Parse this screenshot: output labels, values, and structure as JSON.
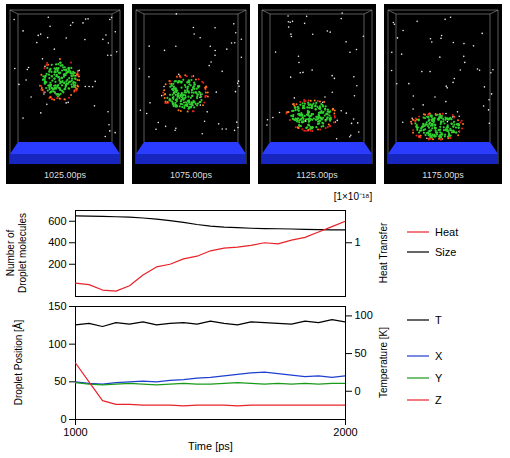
{
  "snapshots": [
    "1025.00ps",
    "1075.00ps",
    "1125.00ps",
    "1175.00ps"
  ],
  "chart_data": [
    {
      "type": "line",
      "y_label": "Number of Droplet molecules",
      "y2_label": "Heat Transfer",
      "annotations": [
        "[1×10⁻¹⁸]"
      ],
      "x": [
        1000,
        1050,
        1100,
        1150,
        1200,
        1250,
        1300,
        1350,
        1400,
        1450,
        1500,
        1550,
        1600,
        1650,
        1700,
        1750,
        1800,
        1850,
        1900,
        1950,
        2000
      ],
      "xlim": [
        1000,
        2000
      ],
      "ylim": [
        -100,
        700
      ],
      "yticks": [
        200,
        400,
        600
      ],
      "y2lim": [
        0,
        1.6
      ],
      "y2ticks": [
        1
      ],
      "legend": "right",
      "series": [
        {
          "name": "Heat",
          "color": "#e8232a",
          "axis": "y2",
          "values": [
            0.25,
            0.22,
            0.12,
            0.1,
            0.2,
            0.4,
            0.55,
            0.6,
            0.7,
            0.75,
            0.85,
            0.9,
            0.92,
            0.95,
            1.0,
            0.98,
            1.05,
            1.1,
            1.2,
            1.3,
            1.4
          ]
        },
        {
          "name": "Size",
          "color": "#000000",
          "values": [
            650,
            648,
            645,
            642,
            638,
            630,
            620,
            605,
            590,
            570,
            555,
            545,
            540,
            535,
            532,
            530,
            528,
            525,
            522,
            520,
            520
          ]
        }
      ]
    },
    {
      "type": "line",
      "x_label": "Time [ps]",
      "y_label": "Droplet Position [Å]",
      "y2_label": "Temperature [K]",
      "x": [
        1000,
        1050,
        1100,
        1150,
        1200,
        1250,
        1300,
        1350,
        1400,
        1450,
        1500,
        1550,
        1600,
        1650,
        1700,
        1750,
        1800,
        1850,
        1900,
        1950,
        2000
      ],
      "xlim": [
        1000,
        2000
      ],
      "xticks": [
        1000,
        2000
      ],
      "ylim": [
        0,
        150
      ],
      "yticks": [
        0,
        50,
        100,
        150
      ],
      "y2lim": [
        -37.5,
        112.5
      ],
      "y2ticks": [
        0,
        50,
        100
      ],
      "legend": "right",
      "series": [
        {
          "name": "T",
          "color": "#000000",
          "axis": "y2",
          "values": [
            88,
            90,
            86,
            91,
            89,
            92,
            88,
            90,
            91,
            89,
            93,
            90,
            88,
            92,
            91,
            90,
            89,
            93,
            91,
            95,
            92
          ]
        },
        {
          "name": "X",
          "color": "#1f3fd0",
          "values": [
            50,
            48,
            47,
            49,
            50,
            51,
            50,
            52,
            53,
            55,
            56,
            58,
            60,
            62,
            63,
            61,
            59,
            57,
            58,
            56,
            58
          ]
        },
        {
          "name": "Y",
          "color": "#1a9a1a",
          "values": [
            49,
            47,
            46,
            47,
            48,
            47,
            46,
            47,
            48,
            47,
            47,
            48,
            49,
            48,
            47,
            48,
            47,
            48,
            47,
            48,
            48
          ]
        },
        {
          "name": "Z",
          "color": "#e8232a",
          "values": [
            75,
            50,
            25,
            20,
            20,
            19,
            19,
            19,
            18,
            19,
            19,
            19,
            18,
            19,
            19,
            19,
            19,
            19,
            19,
            19,
            19
          ]
        }
      ]
    }
  ]
}
